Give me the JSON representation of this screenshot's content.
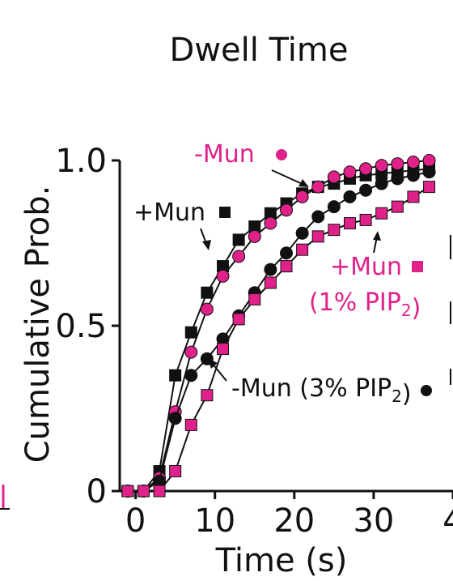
{
  "colors": {
    "black": "#111111",
    "magenta": "#e0218a"
  },
  "chart_data": {
    "type": "scatter",
    "title": "Dwell Time",
    "xlabel": "Time (s)",
    "ylabel": "Cumulative Prob.",
    "xlim": [
      -2,
      40
    ],
    "ylim": [
      0,
      1.0
    ],
    "xticks": [
      "0",
      "10",
      "20",
      "30",
      "4"
    ],
    "yticks": [
      "0",
      "0.5",
      "1.0"
    ],
    "series": [
      {
        "name": "+Mun",
        "color": "#111111",
        "marker": "square",
        "x": [
          -1,
          1,
          3,
          5,
          7,
          9,
          11,
          13,
          15,
          17,
          19,
          21,
          23,
          25,
          27,
          29,
          31,
          33,
          35,
          37
        ],
        "y": [
          0,
          0,
          0.06,
          0.35,
          0.48,
          0.6,
          0.68,
          0.76,
          0.8,
          0.84,
          0.87,
          0.9,
          0.92,
          0.93,
          0.945,
          0.955,
          0.96,
          0.965,
          0.97,
          0.975
        ]
      },
      {
        "name": "-Mun",
        "color": "#e0218a",
        "marker": "circle",
        "x": [
          -1,
          1,
          3,
          5,
          7,
          9,
          11,
          13,
          15,
          17,
          19,
          21,
          23,
          25,
          27,
          29,
          31,
          33,
          35,
          37
        ],
        "y": [
          0,
          0,
          0.04,
          0.24,
          0.42,
          0.55,
          0.65,
          0.71,
          0.77,
          0.81,
          0.85,
          0.89,
          0.92,
          0.95,
          0.965,
          0.975,
          0.985,
          0.99,
          0.995,
          1.0
        ]
      },
      {
        "name": "-Mun (3% PIP2)",
        "color": "#111111",
        "marker": "circle",
        "x": [
          -1,
          1,
          3,
          5,
          7,
          9,
          11,
          13,
          15,
          17,
          19,
          21,
          23,
          25,
          27,
          29,
          31,
          33,
          35,
          37
        ],
        "y": [
          0,
          0,
          0.03,
          0.22,
          0.35,
          0.4,
          0.46,
          0.53,
          0.6,
          0.67,
          0.72,
          0.78,
          0.83,
          0.86,
          0.89,
          0.91,
          0.93,
          0.945,
          0.955,
          0.965
        ]
      },
      {
        "name": "+Mun (1% PIP2)",
        "color": "#e0218a",
        "marker": "square",
        "x": [
          -1,
          1,
          3,
          5,
          7,
          9,
          11,
          13,
          15,
          17,
          19,
          21,
          23,
          25,
          27,
          29,
          31,
          33,
          35,
          37
        ],
        "y": [
          0,
          0,
          0,
          0.06,
          0.2,
          0.29,
          0.43,
          0.52,
          0.58,
          0.63,
          0.68,
          0.73,
          0.77,
          0.79,
          0.81,
          0.82,
          0.84,
          0.86,
          0.89,
          0.92
        ]
      }
    ],
    "annotations": [
      {
        "text": "-Mun",
        "color": "#e0218a",
        "legend_marker": "circle"
      },
      {
        "text": "+Mun",
        "color": "#111111",
        "legend_marker": "square"
      },
      {
        "text": "+Mun",
        "color": "#e0218a",
        "legend_marker": "square"
      },
      {
        "text": "(1% PIP2)",
        "color": "#e0218a"
      },
      {
        "text": "-Mun (3% PIP2)",
        "color": "#111111",
        "legend_marker": "circle"
      }
    ]
  }
}
